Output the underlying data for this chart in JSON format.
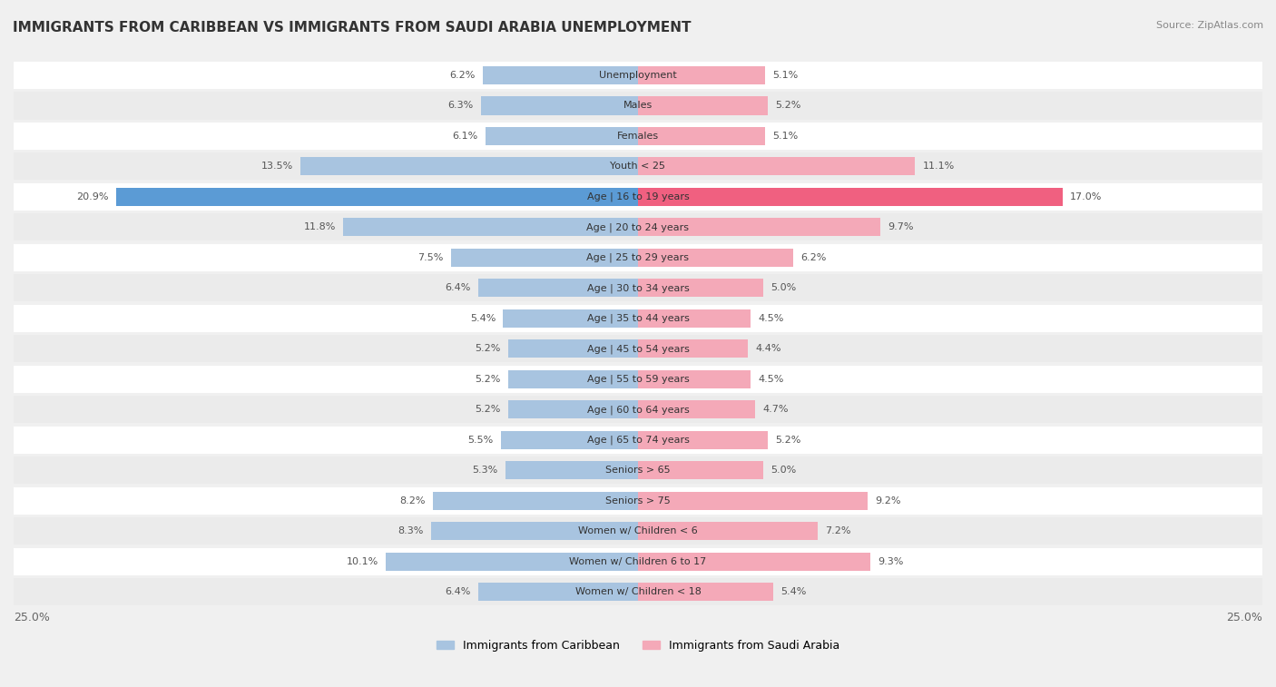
{
  "title": "IMMIGRANTS FROM CARIBBEAN VS IMMIGRANTS FROM SAUDI ARABIA UNEMPLOYMENT",
  "source": "Source: ZipAtlas.com",
  "categories": [
    "Unemployment",
    "Males",
    "Females",
    "Youth < 25",
    "Age | 16 to 19 years",
    "Age | 20 to 24 years",
    "Age | 25 to 29 years",
    "Age | 30 to 34 years",
    "Age | 35 to 44 years",
    "Age | 45 to 54 years",
    "Age | 55 to 59 years",
    "Age | 60 to 64 years",
    "Age | 65 to 74 years",
    "Seniors > 65",
    "Seniors > 75",
    "Women w/ Children < 6",
    "Women w/ Children 6 to 17",
    "Women w/ Children < 18"
  ],
  "caribbean_values": [
    6.2,
    6.3,
    6.1,
    13.5,
    20.9,
    11.8,
    7.5,
    6.4,
    5.4,
    5.2,
    5.2,
    5.2,
    5.5,
    5.3,
    8.2,
    8.3,
    10.1,
    6.4
  ],
  "saudi_values": [
    5.1,
    5.2,
    5.1,
    11.1,
    17.0,
    9.7,
    6.2,
    5.0,
    4.5,
    4.4,
    4.5,
    4.7,
    5.2,
    5.0,
    9.2,
    7.2,
    9.3,
    5.4
  ],
  "caribbean_color": "#a8c4e0",
  "saudi_color": "#f4a9b8",
  "caribbean_highlight_color": "#5b9bd5",
  "saudi_highlight_color": "#f06080",
  "label_caribbean": "Immigrants from Caribbean",
  "label_saudi": "Immigrants from Saudi Arabia",
  "xlim": 25.0,
  "background_color": "#f0f0f0",
  "bar_background": "#ffffff",
  "row_alt_color": "#e8e8e8"
}
